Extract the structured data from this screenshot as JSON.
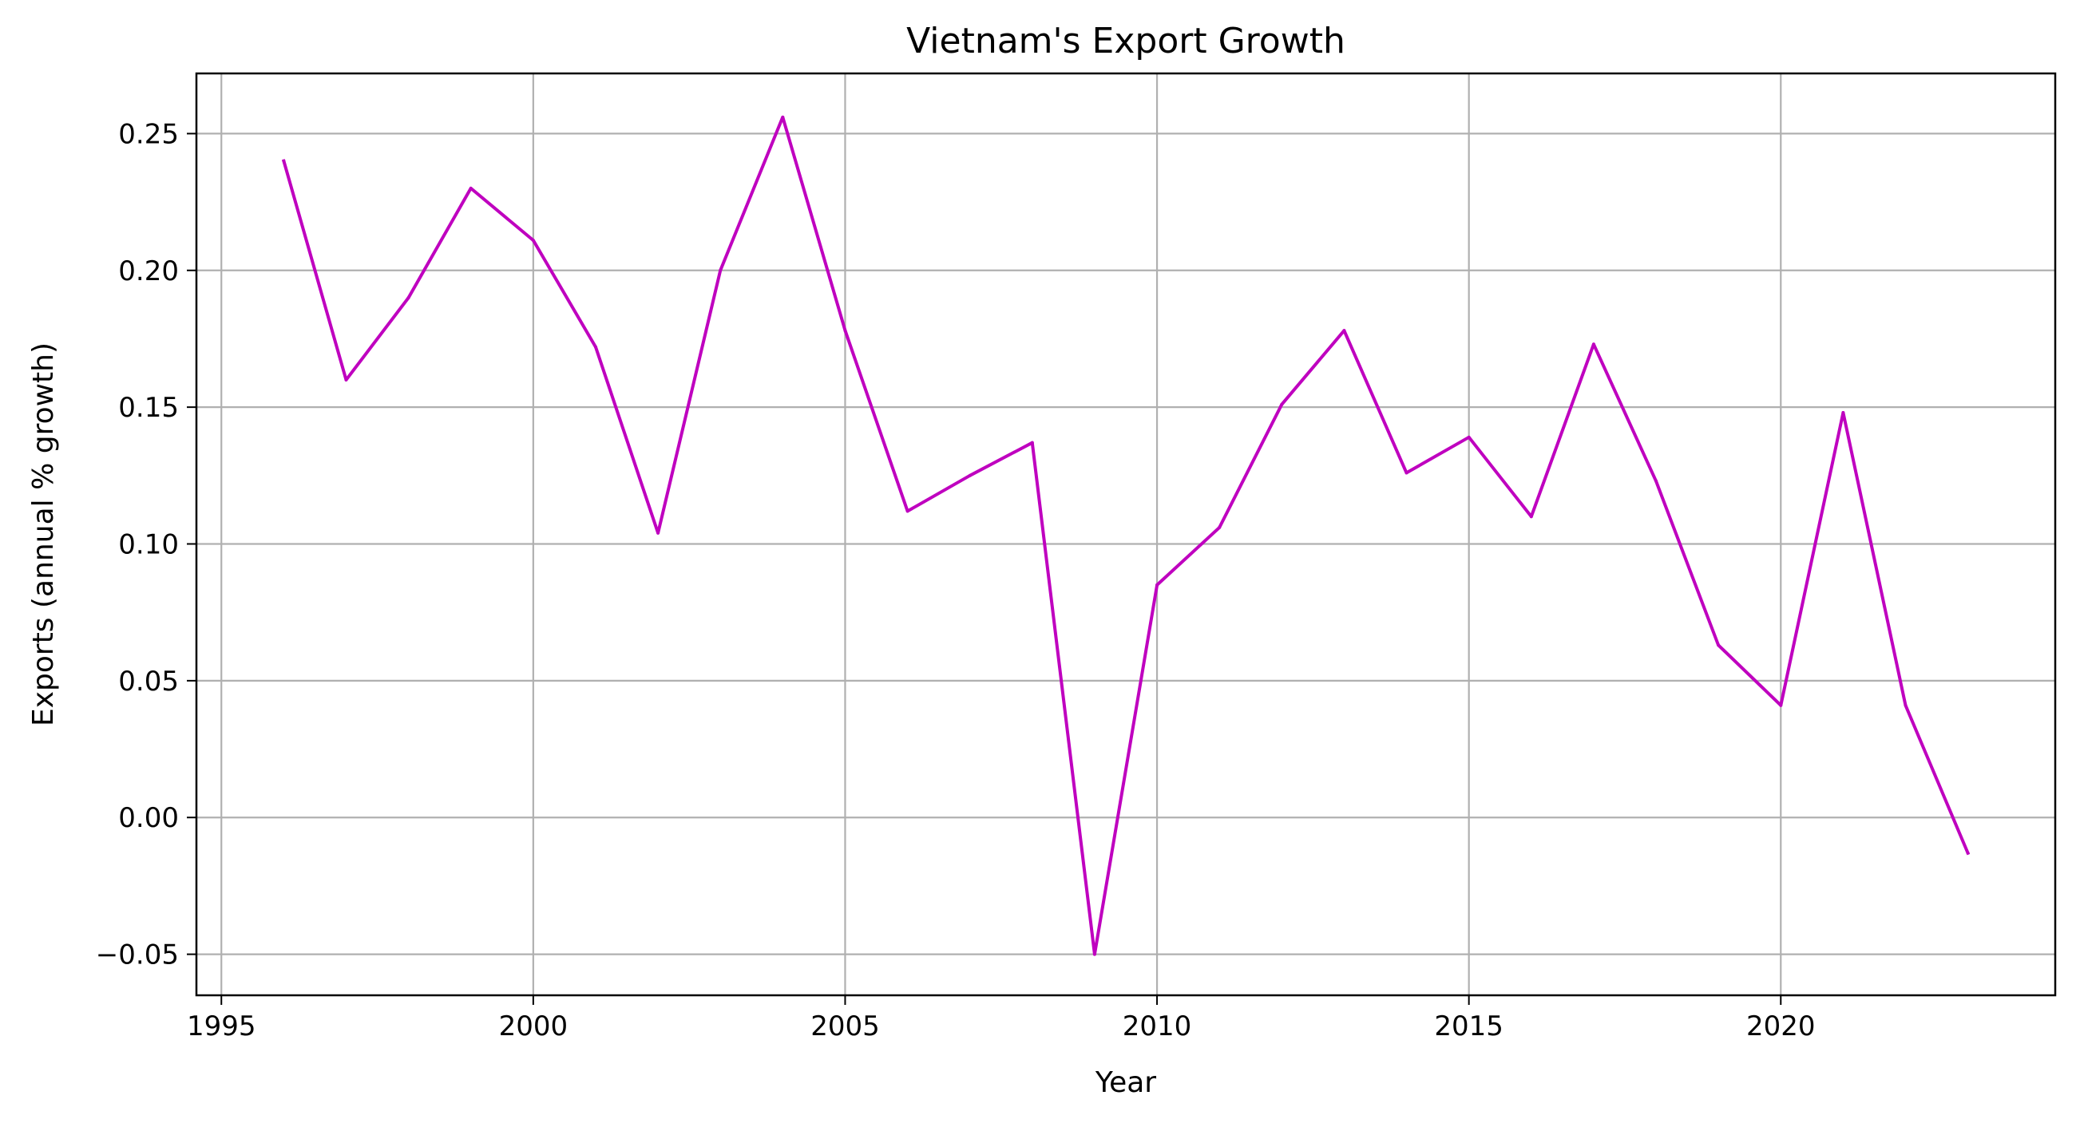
{
  "chart_data": {
    "type": "line",
    "title": "Vietnam's Export Growth",
    "xlabel": "Year",
    "ylabel": "Exports (annual % growth)",
    "xlim": [
      1994.6,
      2024.4
    ],
    "ylim": [
      -0.065,
      0.272
    ],
    "xticks": [
      1995,
      2000,
      2005,
      2010,
      2015,
      2020
    ],
    "xtick_labels": [
      "1995",
      "2000",
      "2005",
      "2010",
      "2015",
      "2020"
    ],
    "yticks": [
      -0.05,
      0.0,
      0.05,
      0.1,
      0.15,
      0.2,
      0.25
    ],
    "ytick_labels": [
      "−0.05",
      "0.00",
      "0.05",
      "0.10",
      "0.15",
      "0.20",
      "0.25"
    ],
    "grid": true,
    "series": [
      {
        "color": "#bf00bf",
        "x": [
          1996,
          1997,
          1998,
          1999,
          2000,
          2001,
          2002,
          2003,
          2004,
          2005,
          2006,
          2007,
          2008,
          2009,
          2010,
          2011,
          2012,
          2013,
          2014,
          2015,
          2016,
          2017,
          2018,
          2019,
          2020,
          2021,
          2022,
          2023
        ],
        "y": [
          0.24,
          0.16,
          0.19,
          0.23,
          0.211,
          0.172,
          0.104,
          0.2,
          0.256,
          0.178,
          0.112,
          0.125,
          0.137,
          -0.05,
          0.085,
          0.106,
          0.151,
          0.178,
          0.126,
          0.139,
          0.11,
          0.173,
          0.123,
          0.063,
          0.041,
          0.148,
          0.041,
          -0.013
        ]
      }
    ]
  }
}
